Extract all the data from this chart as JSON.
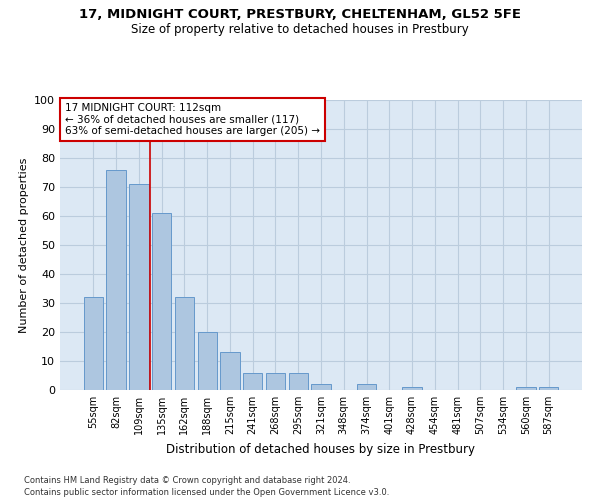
{
  "title": "17, MIDNIGHT COURT, PRESTBURY, CHELTENHAM, GL52 5FE",
  "subtitle": "Size of property relative to detached houses in Prestbury",
  "xlabel": "Distribution of detached houses by size in Prestbury",
  "ylabel": "Number of detached properties",
  "categories": [
    "55sqm",
    "82sqm",
    "109sqm",
    "135sqm",
    "162sqm",
    "188sqm",
    "215sqm",
    "241sqm",
    "268sqm",
    "295sqm",
    "321sqm",
    "348sqm",
    "374sqm",
    "401sqm",
    "428sqm",
    "454sqm",
    "481sqm",
    "507sqm",
    "534sqm",
    "560sqm",
    "587sqm"
  ],
  "values": [
    32,
    76,
    71,
    61,
    32,
    20,
    13,
    6,
    6,
    6,
    2,
    0,
    2,
    0,
    1,
    0,
    0,
    0,
    0,
    1,
    1
  ],
  "bar_color": "#adc6e0",
  "bar_edge_color": "#6699cc",
  "vline_x_index": 2,
  "vline_color": "#cc0000",
  "annotation_text": "17 MIDNIGHT COURT: 112sqm\n← 36% of detached houses are smaller (117)\n63% of semi-detached houses are larger (205) →",
  "annotation_box_color": "#ffffff",
  "annotation_box_edge": "#cc0000",
  "ylim": [
    0,
    100
  ],
  "yticks": [
    0,
    10,
    20,
    30,
    40,
    50,
    60,
    70,
    80,
    90,
    100
  ],
  "grid_color": "#bbccdd",
  "bg_color": "#dce8f4",
  "footer1": "Contains HM Land Registry data © Crown copyright and database right 2024.",
  "footer2": "Contains public sector information licensed under the Open Government Licence v3.0."
}
